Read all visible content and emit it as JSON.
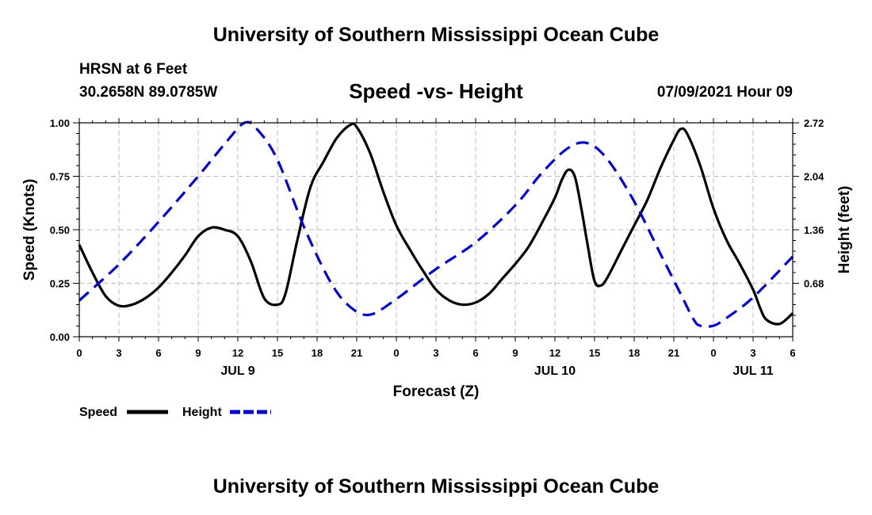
{
  "header": {
    "title": "University of Southern Mississippi Ocean Cube",
    "station": "HRSN at 6 Feet",
    "coords": "30.2658N  89.0785W",
    "subtitle": "Speed -vs- Height",
    "datetime": "07/09/2021 Hour 09"
  },
  "footer": {
    "title": "University of Southern Mississippi Ocean Cube"
  },
  "chart_data": {
    "type": "line",
    "title": "Speed -vs- Height",
    "xlabel": "Forecast (Z)",
    "ylabel_left": "Speed (Knots)",
    "ylabel_right": "Height (feet)",
    "x_range_hours": [
      0,
      54
    ],
    "x_ticks": {
      "hours": [
        0,
        3,
        6,
        9,
        12,
        15,
        18,
        21,
        24,
        27,
        30,
        33,
        36,
        39,
        42,
        45,
        48,
        51,
        54
      ],
      "labels": [
        "0",
        "3",
        "6",
        "9",
        "12",
        "15",
        "18",
        "21",
        "0",
        "3",
        "6",
        "9",
        "12",
        "15",
        "18",
        "21",
        "0",
        "3",
        "6"
      ]
    },
    "day_labels": [
      {
        "hour": 12,
        "label": "JUL 9"
      },
      {
        "hour": 36,
        "label": "JUL 10"
      },
      {
        "hour": 51,
        "label": "JUL 11"
      }
    ],
    "y_left": {
      "range": [
        0,
        1
      ],
      "ticks": [
        0,
        0.25,
        0.5,
        0.75,
        1.0
      ],
      "labels": [
        "0.00",
        "0.25",
        "0.50",
        "0.75",
        "1.00"
      ]
    },
    "y_right": {
      "range": [
        0,
        2.72
      ],
      "ticks": [
        0.68,
        1.36,
        2.04,
        2.72
      ],
      "labels": [
        "0.68",
        "1.36",
        "2.04",
        "2.72"
      ]
    },
    "grid": true,
    "series": [
      {
        "name": "Speed",
        "axis": "left",
        "color": "#000000",
        "style": "solid",
        "points": [
          [
            0,
            0.43
          ],
          [
            1,
            0.3
          ],
          [
            2,
            0.19
          ],
          [
            3,
            0.145
          ],
          [
            4,
            0.15
          ],
          [
            5,
            0.18
          ],
          [
            6,
            0.23
          ],
          [
            7,
            0.3
          ],
          [
            8,
            0.38
          ],
          [
            9,
            0.47
          ],
          [
            10,
            0.51
          ],
          [
            11,
            0.5
          ],
          [
            12,
            0.47
          ],
          [
            13,
            0.35
          ],
          [
            14,
            0.18
          ],
          [
            15,
            0.15
          ],
          [
            15.6,
            0.2
          ],
          [
            16.5,
            0.45
          ],
          [
            17.5,
            0.7
          ],
          [
            18.5,
            0.82
          ],
          [
            19.5,
            0.93
          ],
          [
            20.5,
            0.99
          ],
          [
            21,
            0.98
          ],
          [
            22,
            0.86
          ],
          [
            23,
            0.68
          ],
          [
            24,
            0.52
          ],
          [
            25,
            0.41
          ],
          [
            26,
            0.31
          ],
          [
            27,
            0.22
          ],
          [
            28,
            0.17
          ],
          [
            29,
            0.15
          ],
          [
            30,
            0.16
          ],
          [
            31,
            0.2
          ],
          [
            32,
            0.27
          ],
          [
            33,
            0.34
          ],
          [
            34,
            0.42
          ],
          [
            35,
            0.53
          ],
          [
            36,
            0.65
          ],
          [
            36.5,
            0.73
          ],
          [
            37,
            0.78
          ],
          [
            37.5,
            0.75
          ],
          [
            38,
            0.6
          ],
          [
            38.5,
            0.42
          ],
          [
            39,
            0.26
          ],
          [
            39.5,
            0.24
          ],
          [
            40,
            0.28
          ],
          [
            41,
            0.4
          ],
          [
            42,
            0.52
          ],
          [
            43,
            0.64
          ],
          [
            44,
            0.79
          ],
          [
            45,
            0.92
          ],
          [
            45.5,
            0.97
          ],
          [
            46,
            0.95
          ],
          [
            47,
            0.8
          ],
          [
            48,
            0.6
          ],
          [
            49,
            0.45
          ],
          [
            50,
            0.34
          ],
          [
            51,
            0.22
          ],
          [
            51.5,
            0.14
          ],
          [
            52,
            0.08
          ],
          [
            53,
            0.06
          ],
          [
            54,
            0.11
          ]
        ]
      },
      {
        "name": "Height",
        "axis": "right",
        "color": "#0000cc",
        "style": "dashed",
        "points": [
          [
            0,
            0.46
          ],
          [
            3,
            0.92
          ],
          [
            6,
            1.46
          ],
          [
            9,
            2.04
          ],
          [
            11,
            2.45
          ],
          [
            12.5,
            2.72
          ],
          [
            13.5,
            2.63
          ],
          [
            15,
            2.25
          ],
          [
            17,
            1.4
          ],
          [
            19,
            0.7
          ],
          [
            20.5,
            0.38
          ],
          [
            22,
            0.28
          ],
          [
            24,
            0.48
          ],
          [
            27,
            0.86
          ],
          [
            30,
            1.2
          ],
          [
            33,
            1.67
          ],
          [
            35,
            2.08
          ],
          [
            37,
            2.4
          ],
          [
            38.5,
            2.46
          ],
          [
            40,
            2.25
          ],
          [
            42,
            1.72
          ],
          [
            44,
            1.05
          ],
          [
            45.5,
            0.55
          ],
          [
            46.5,
            0.22
          ],
          [
            47,
            0.14
          ],
          [
            48,
            0.14
          ],
          [
            49,
            0.24
          ],
          [
            51,
            0.5
          ],
          [
            54,
            1.02
          ]
        ]
      }
    ],
    "legend": {
      "position": "bottom-left",
      "entries": [
        "Speed",
        "Height"
      ]
    }
  }
}
